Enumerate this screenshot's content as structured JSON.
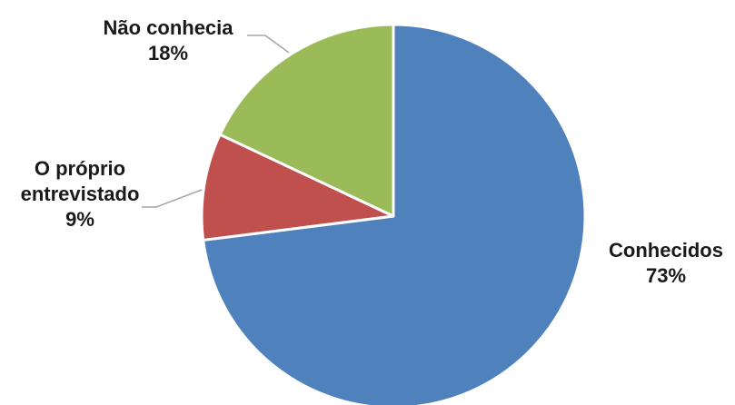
{
  "chart_data": {
    "type": "pie",
    "title": "",
    "slices": [
      {
        "label": "Conhecidos",
        "value": 73,
        "value_label": "73%",
        "color": "#4f81bd"
      },
      {
        "label": "O próprio entrevistado",
        "label_lines": [
          "O próprio",
          "entrevistado"
        ],
        "value": 9,
        "value_label": "9%",
        "color": "#c0504d"
      },
      {
        "label": "Não conhecia",
        "value": 18,
        "value_label": "18%",
        "color": "#9bbb59"
      }
    ],
    "start": "12 o'clock",
    "direction": "clockwise",
    "legend": "none",
    "data_labels": "outside with leader lines"
  }
}
